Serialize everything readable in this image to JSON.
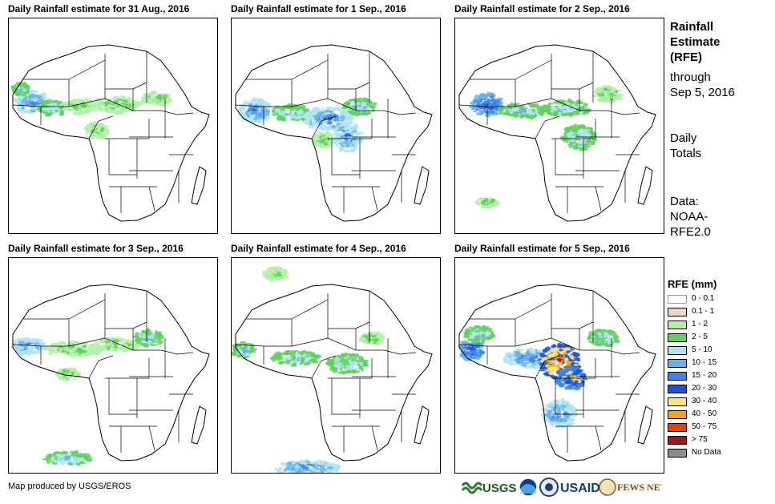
{
  "maps": [
    {
      "title": "Daily Rainfall estimate for 31 Aug., 2016"
    },
    {
      "title": "Daily Rainfall estimate for 1 Sep., 2016"
    },
    {
      "title": "Daily Rainfall estimate for 2 Sep., 2016"
    },
    {
      "title": "Daily Rainfall estimate for 3 Sep., 2016"
    },
    {
      "title": "Daily Rainfall estimate for 4 Sep., 2016"
    },
    {
      "title": "Daily Rainfall estimate for 5 Sep., 2016"
    }
  ],
  "side": {
    "title_lines": [
      "Rainfall",
      "Estimate",
      "(RFE)"
    ],
    "through_lines": [
      "through",
      "Sep 5, 2016"
    ],
    "totals_lines": [
      "Daily",
      "Totals"
    ],
    "data_lines": [
      "Data:",
      "NOAA-",
      "RFE2.0"
    ]
  },
  "legend": {
    "title": "RFE (mm)",
    "items": [
      {
        "label": "0 - 0.1",
        "color": "#ffffff"
      },
      {
        "label": "0.1 - 1",
        "color": "#ead9bf"
      },
      {
        "label": "1 - 2",
        "color": "#b4f0a8"
      },
      {
        "label": "2 - 5",
        "color": "#5fd25c"
      },
      {
        "label": "5 - 10",
        "color": "#aee4f4"
      },
      {
        "label": "10 - 15",
        "color": "#6ab0ea"
      },
      {
        "label": "15 - 20",
        "color": "#3c86e8"
      },
      {
        "label": "20 - 30",
        "color": "#1c52dc"
      },
      {
        "label": "30 - 40",
        "color": "#fde87a"
      },
      {
        "label": "40 - 50",
        "color": "#f7a400"
      },
      {
        "label": "50 - 75",
        "color": "#f03c00"
      },
      {
        "label": "> 75",
        "color": "#a01818"
      },
      {
        "label": "No Data",
        "color": "#8c8c8c"
      }
    ]
  },
  "footer": {
    "credit": "Map produced by USGS/EROS"
  },
  "logos": {
    "usgs": "USGS",
    "usaid": "USAID",
    "fews": "FEWS NET"
  }
}
